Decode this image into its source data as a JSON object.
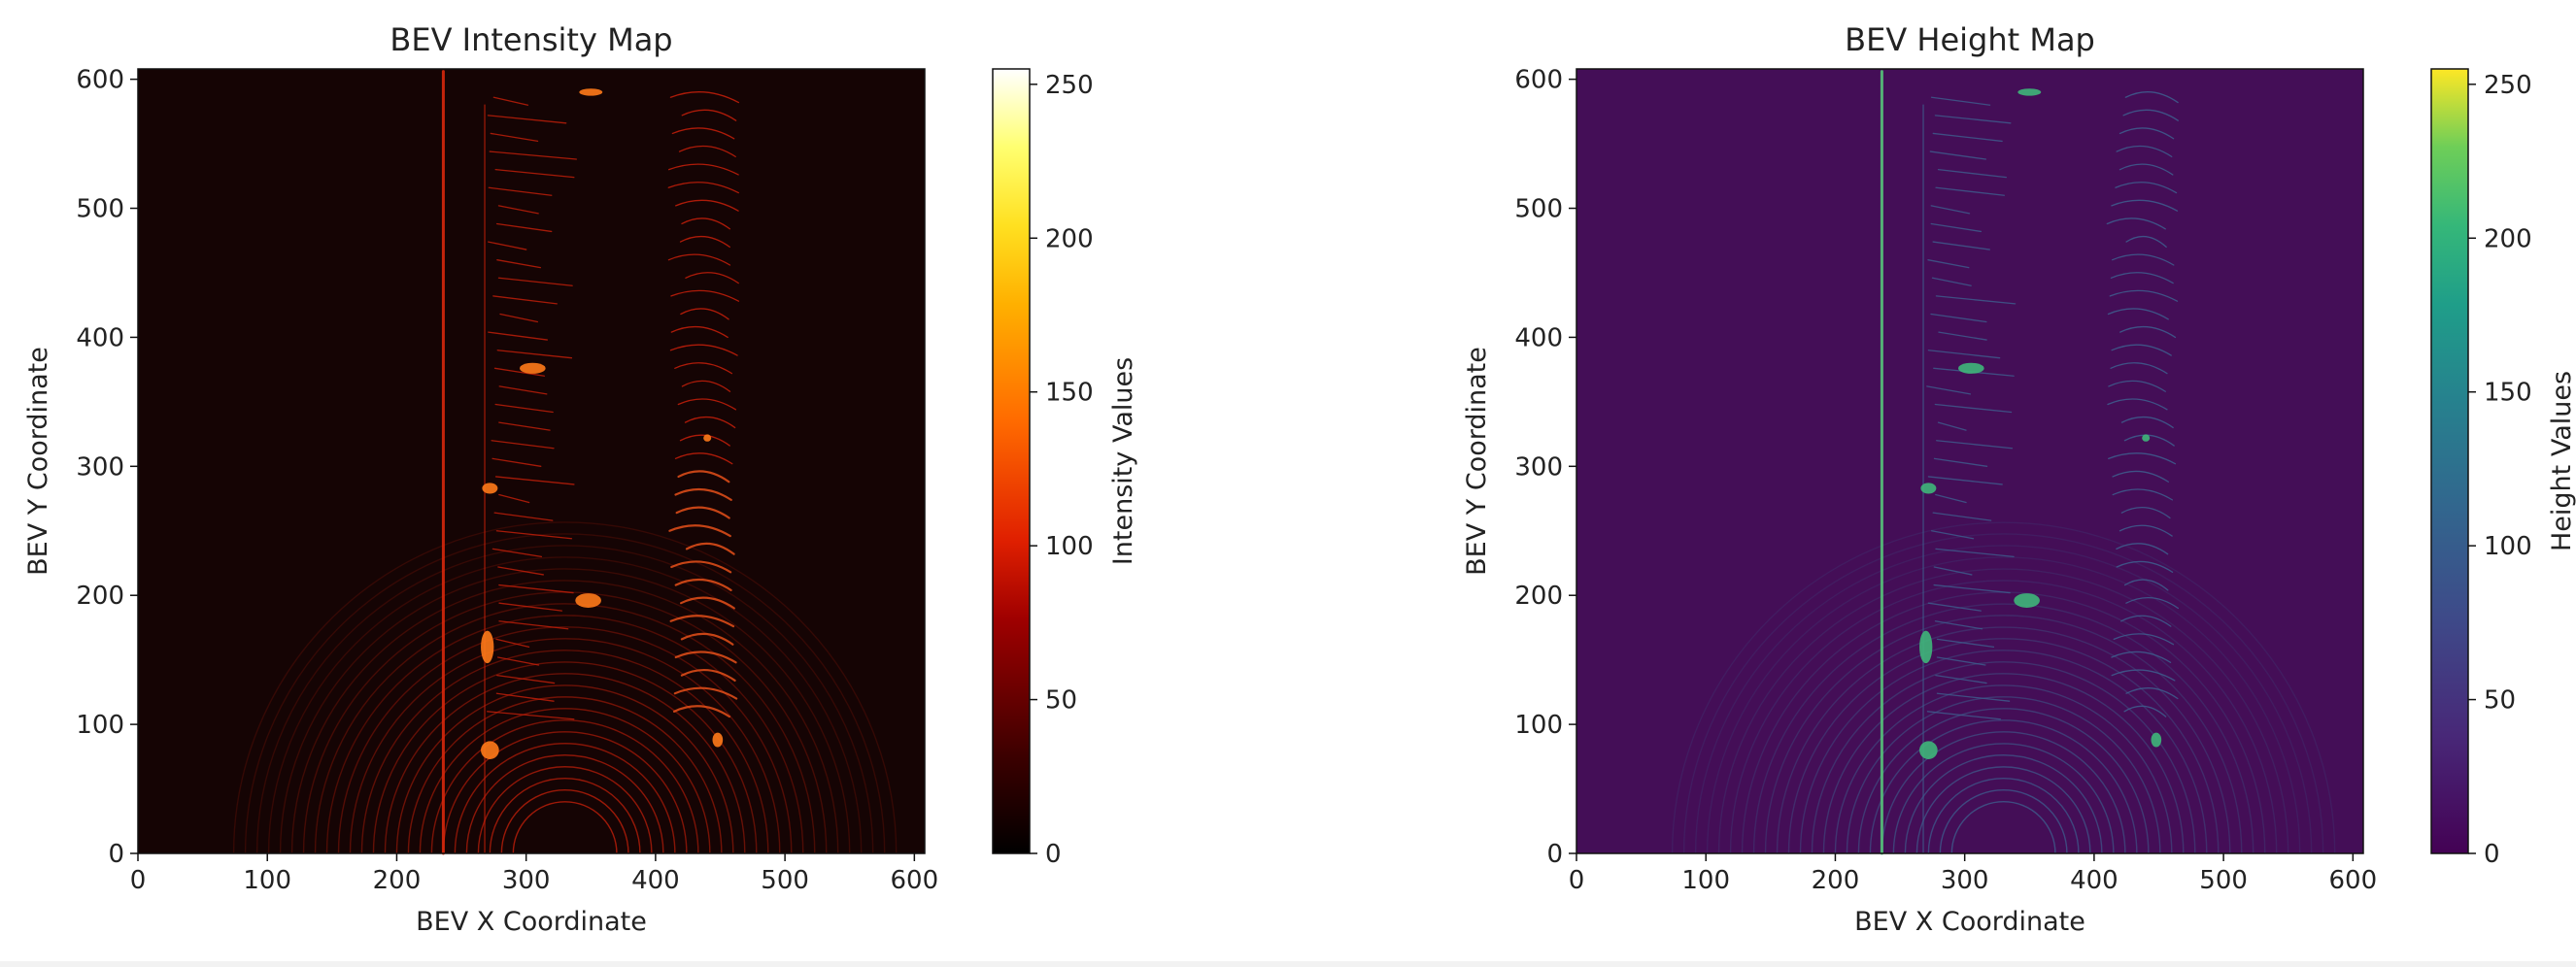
{
  "chart_data": [
    {
      "type": "heatmap",
      "title": "BEV Intensity Map",
      "xlabel": "BEV X Coordinate",
      "ylabel": "BEV Y Coordinate",
      "xlim": [
        0,
        608
      ],
      "ylim": [
        0,
        608
      ],
      "xticks": [
        0,
        100,
        200,
        300,
        400,
        500,
        600
      ],
      "yticks": [
        0,
        100,
        200,
        300,
        400,
        500,
        600
      ],
      "colormap": "hot",
      "background_color": "#150404",
      "colorbar": {
        "label": "Intensity Values",
        "range": [
          0,
          255
        ],
        "ticks": [
          0,
          50,
          100,
          150,
          200,
          250
        ]
      },
      "grid": false
    },
    {
      "type": "heatmap",
      "title": "BEV Height Map",
      "xlabel": "BEV X Coordinate",
      "ylabel": "BEV Y Coordinate",
      "xlim": [
        0,
        608
      ],
      "ylim": [
        0,
        608
      ],
      "xticks": [
        0,
        100,
        200,
        300,
        400,
        500,
        600
      ],
      "yticks": [
        0,
        100,
        200,
        300,
        400,
        500,
        600
      ],
      "colormap": "viridis",
      "background_color": "#440e57",
      "colorbar": {
        "label": "Height Values",
        "range": [
          0,
          255
        ],
        "ticks": [
          0,
          50,
          100,
          150,
          200,
          250
        ]
      },
      "grid": false
    }
  ]
}
